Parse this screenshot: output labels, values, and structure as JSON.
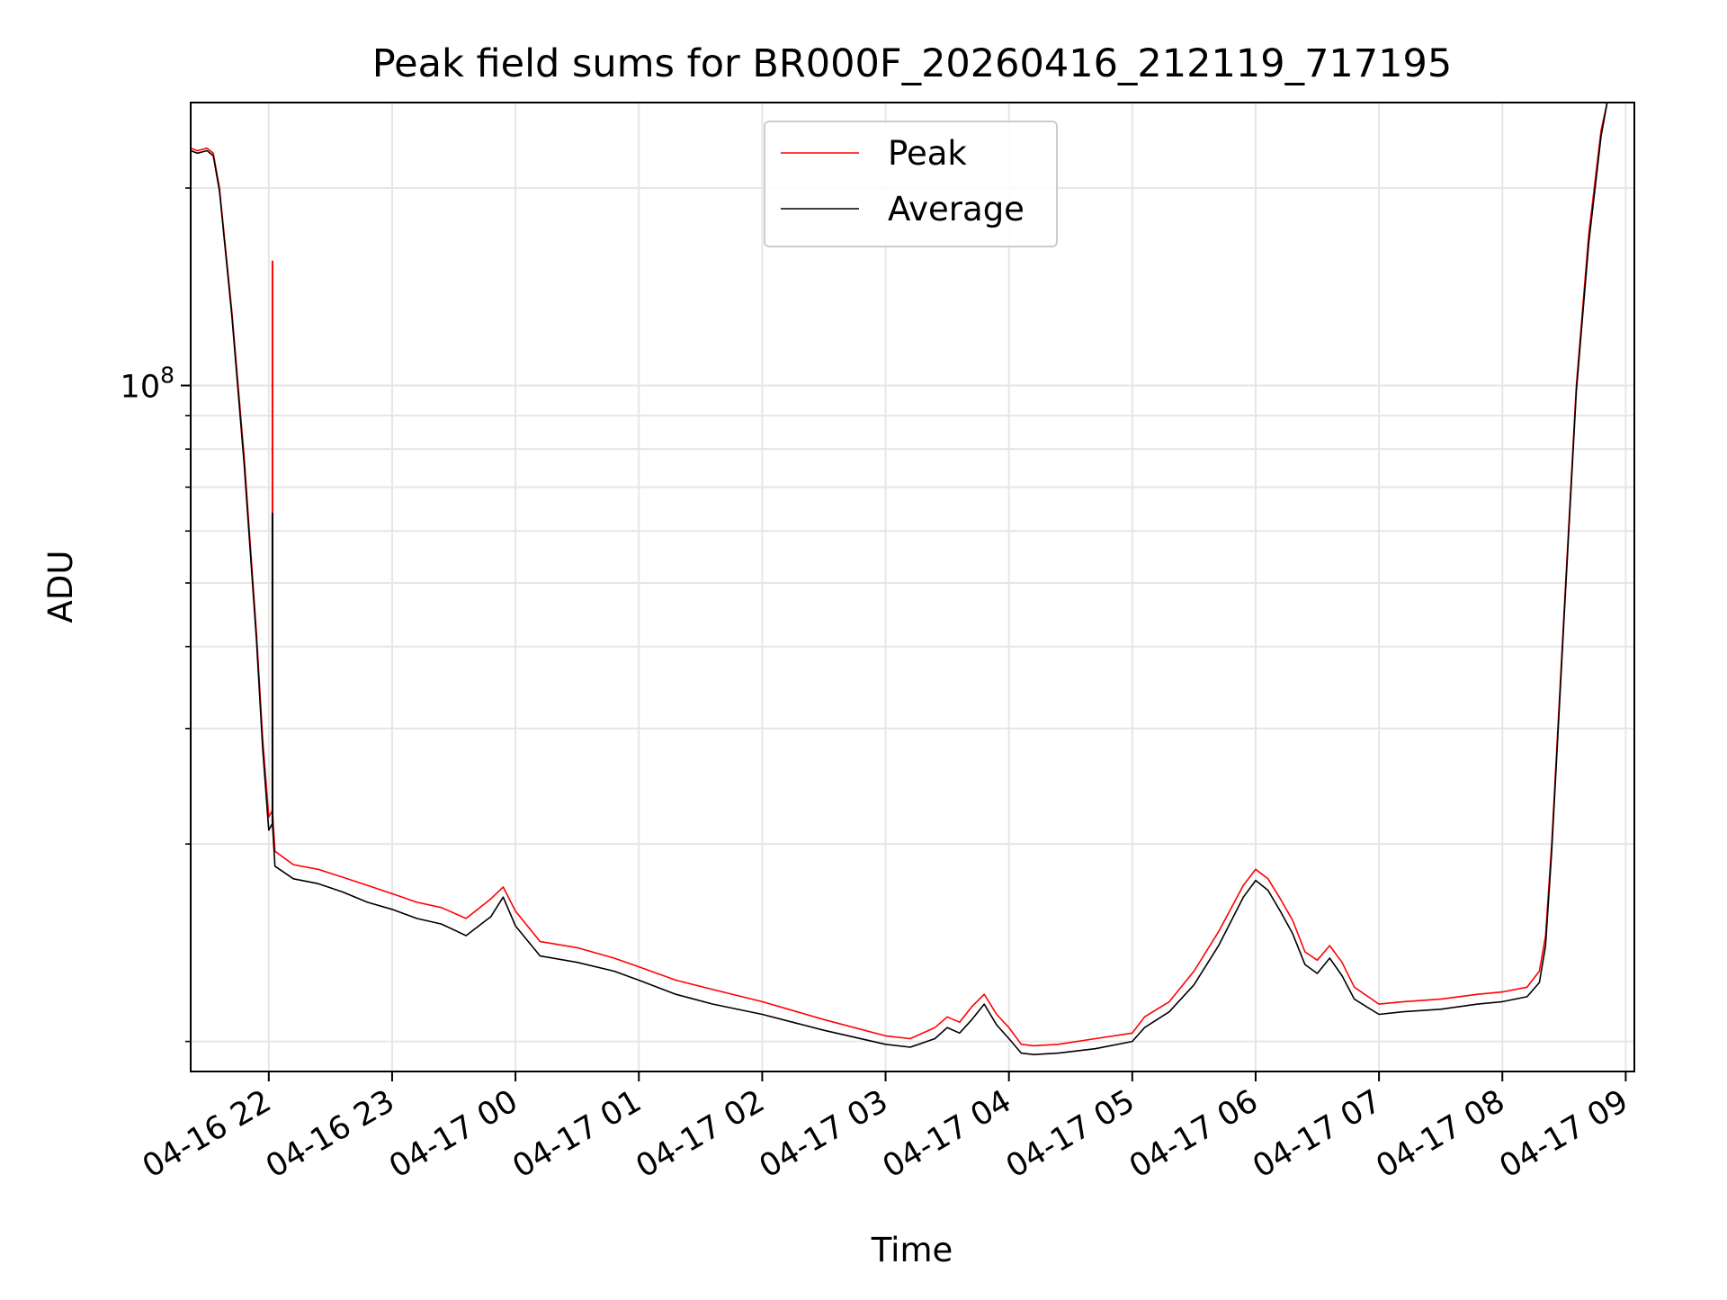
{
  "chart_data": {
    "type": "line",
    "title": "Peak field sums for BR000F_20260416_212119_717195",
    "xlabel": "Time",
    "ylabel": "ADU",
    "yscale": "log",
    "ylim": [
      9000000,
      270000000
    ],
    "xlim": [
      21.367,
      33.07
    ],
    "grid": true,
    "legend_location": "upper-center",
    "x_ticks": [
      {
        "value": 22,
        "label": "04-16 22"
      },
      {
        "value": 23,
        "label": "04-16 23"
      },
      {
        "value": 24,
        "label": "04-17 00"
      },
      {
        "value": 25,
        "label": "04-17 01"
      },
      {
        "value": 26,
        "label": "04-17 02"
      },
      {
        "value": 27,
        "label": "04-17 03"
      },
      {
        "value": 28,
        "label": "04-17 04"
      },
      {
        "value": 29,
        "label": "04-17 05"
      },
      {
        "value": 30,
        "label": "04-17 06"
      },
      {
        "value": 31,
        "label": "04-17 07"
      },
      {
        "value": 32,
        "label": "04-17 08"
      },
      {
        "value": 33,
        "label": "04-17 09"
      }
    ],
    "y_major_tick": {
      "value": 100000000,
      "base": "10",
      "exponent": "8"
    },
    "y_minor_ticks": [
      10000000,
      20000000,
      30000000,
      40000000,
      50000000,
      60000000,
      70000000,
      80000000,
      90000000,
      200000000
    ],
    "series": [
      {
        "name": "Peak",
        "color": "#ff0000",
        "x": [
          21.367,
          21.42,
          21.5,
          21.55,
          21.6,
          21.7,
          21.8,
          21.9,
          21.95,
          22.0,
          22.03,
          22.05,
          22.2,
          22.4,
          22.6,
          22.8,
          23.0,
          23.2,
          23.4,
          23.6,
          23.8,
          23.9,
          24.0,
          24.2,
          24.5,
          24.8,
          25.0,
          25.3,
          25.6,
          26.0,
          26.5,
          27.0,
          27.2,
          27.4,
          27.5,
          27.6,
          27.7,
          27.8,
          27.9,
          28.0,
          28.1,
          28.2,
          28.4,
          28.7,
          29.0,
          29.1,
          29.3,
          29.5,
          29.7,
          29.9,
          30.0,
          30.1,
          30.2,
          30.3,
          30.4,
          30.5,
          30.6,
          30.7,
          30.8,
          31.0,
          31.2,
          31.5,
          31.8,
          32.0,
          32.2,
          32.3,
          32.35,
          32.4,
          32.5,
          32.6,
          32.7,
          32.8,
          32.85,
          32.95,
          33.07
        ],
        "values": [
          230000000,
          228000000,
          230000000,
          226000000,
          200000000,
          130000000,
          78000000,
          42000000,
          29000000,
          22000000,
          22500000,
          19500000,
          18600000,
          18300000,
          17800000,
          17300000,
          16800000,
          16300000,
          16000000,
          15400000,
          16500000,
          17200000,
          15800000,
          14200000,
          13900000,
          13400000,
          13000000,
          12400000,
          12000000,
          11500000,
          10800000,
          10200000,
          10100000,
          10500000,
          10900000,
          10700000,
          11300000,
          11800000,
          11000000,
          10500000,
          9900000,
          9850000,
          9900000,
          10100000,
          10300000,
          10900000,
          11500000,
          12800000,
          14700000,
          17300000,
          18300000,
          17700000,
          16500000,
          15300000,
          13700000,
          13300000,
          14000000,
          13200000,
          12100000,
          11400000,
          11500000,
          11600000,
          11800000,
          11900000,
          12100000,
          12800000,
          14500000,
          20000000,
          45000000,
          100000000,
          170000000,
          245000000,
          270000000,
          270000000,
          270000000
        ],
        "spikes": [
          {
            "x": 22.03,
            "values": [
              22500000,
              155000000
            ]
          }
        ]
      },
      {
        "name": "Average",
        "color": "#000000",
        "x": [
          21.367,
          21.42,
          21.5,
          21.55,
          21.6,
          21.7,
          21.8,
          21.9,
          21.95,
          22.0,
          22.03,
          22.05,
          22.2,
          22.4,
          22.6,
          22.8,
          23.0,
          23.2,
          23.4,
          23.6,
          23.8,
          23.9,
          24.0,
          24.2,
          24.5,
          24.8,
          25.0,
          25.3,
          25.6,
          26.0,
          26.5,
          27.0,
          27.2,
          27.4,
          27.5,
          27.6,
          27.7,
          27.8,
          27.9,
          28.0,
          28.1,
          28.2,
          28.4,
          28.7,
          29.0,
          29.1,
          29.3,
          29.5,
          29.7,
          29.9,
          30.0,
          30.1,
          30.2,
          30.3,
          30.4,
          30.5,
          30.6,
          30.7,
          30.8,
          31.0,
          31.2,
          31.5,
          31.8,
          32.0,
          32.2,
          32.3,
          32.35,
          32.4,
          32.5,
          32.6,
          32.7,
          32.8,
          32.85,
          32.95,
          33.07
        ],
        "values": [
          228000000,
          226000000,
          228000000,
          224000000,
          198000000,
          128000000,
          76000000,
          41000000,
          28000000,
          21000000,
          21500000,
          18500000,
          17700000,
          17400000,
          16900000,
          16300000,
          15900000,
          15400000,
          15100000,
          14500000,
          15500000,
          16600000,
          15000000,
          13500000,
          13200000,
          12800000,
          12400000,
          11800000,
          11400000,
          11000000,
          10400000,
          9900000,
          9800000,
          10100000,
          10500000,
          10300000,
          10800000,
          11400000,
          10600000,
          10100000,
          9600000,
          9550000,
          9600000,
          9750000,
          10000000,
          10500000,
          11100000,
          12200000,
          14000000,
          16600000,
          17600000,
          17000000,
          15800000,
          14600000,
          13100000,
          12700000,
          13400000,
          12600000,
          11600000,
          11000000,
          11100000,
          11200000,
          11400000,
          11500000,
          11700000,
          12300000,
          14000000,
          19500000,
          44000000,
          98000000,
          165000000,
          240000000,
          270000000,
          270000000,
          270000000
        ],
        "spikes": [
          {
            "x": 22.03,
            "values": [
              21500000,
              64000000
            ]
          }
        ]
      }
    ]
  }
}
